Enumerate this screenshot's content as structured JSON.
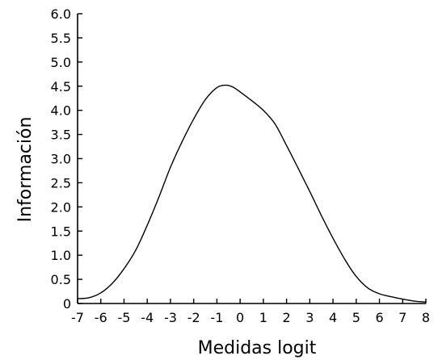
{
  "chart_data": {
    "type": "line",
    "title": "",
    "xlabel": "Medidas logit",
    "ylabel": "Información",
    "xlim": [
      -7,
      8
    ],
    "ylim": [
      0,
      6
    ],
    "x_ticks": [
      -7,
      -6,
      -5,
      -4,
      -3,
      -2,
      -1,
      0,
      1,
      2,
      3,
      4,
      5,
      6,
      7,
      8
    ],
    "x_tick_labels": [
      "-7",
      "-6",
      "-5",
      "-4",
      "-3",
      "-2",
      "-1",
      "0",
      "1",
      "2",
      "3",
      "4",
      "5",
      "6",
      "7",
      "8"
    ],
    "y_ticks": [
      0,
      0.5,
      1,
      1.5,
      2,
      2.5,
      3,
      3.5,
      4,
      4.5,
      5,
      5.5,
      6
    ],
    "y_tick_labels": [
      "0",
      "0.5",
      "1.0",
      "1.5",
      "2.0",
      "2.5",
      "3.0",
      "3.5",
      "4.0",
      "4.5",
      "5.0",
      "5.5",
      "6.0"
    ],
    "grid": false,
    "series": [
      {
        "x": [
          -7,
          -6.5,
          -6,
          -5.5,
          -5,
          -4.5,
          -4,
          -3.5,
          -3,
          -2.5,
          -2,
          -1.5,
          -1,
          -0.6,
          -0.3,
          0,
          0.5,
          1,
          1.5,
          2,
          2.5,
          3,
          3.5,
          4,
          4.5,
          5,
          5.5,
          6,
          6.5,
          7,
          7.5,
          8
        ],
        "y": [
          0.1,
          0.12,
          0.22,
          0.42,
          0.72,
          1.1,
          1.62,
          2.2,
          2.82,
          3.35,
          3.82,
          4.22,
          4.47,
          4.52,
          4.48,
          4.38,
          4.2,
          4.0,
          3.72,
          3.27,
          2.8,
          2.32,
          1.82,
          1.35,
          0.92,
          0.56,
          0.32,
          0.2,
          0.14,
          0.09,
          0.05,
          0.03
        ]
      }
    ]
  }
}
